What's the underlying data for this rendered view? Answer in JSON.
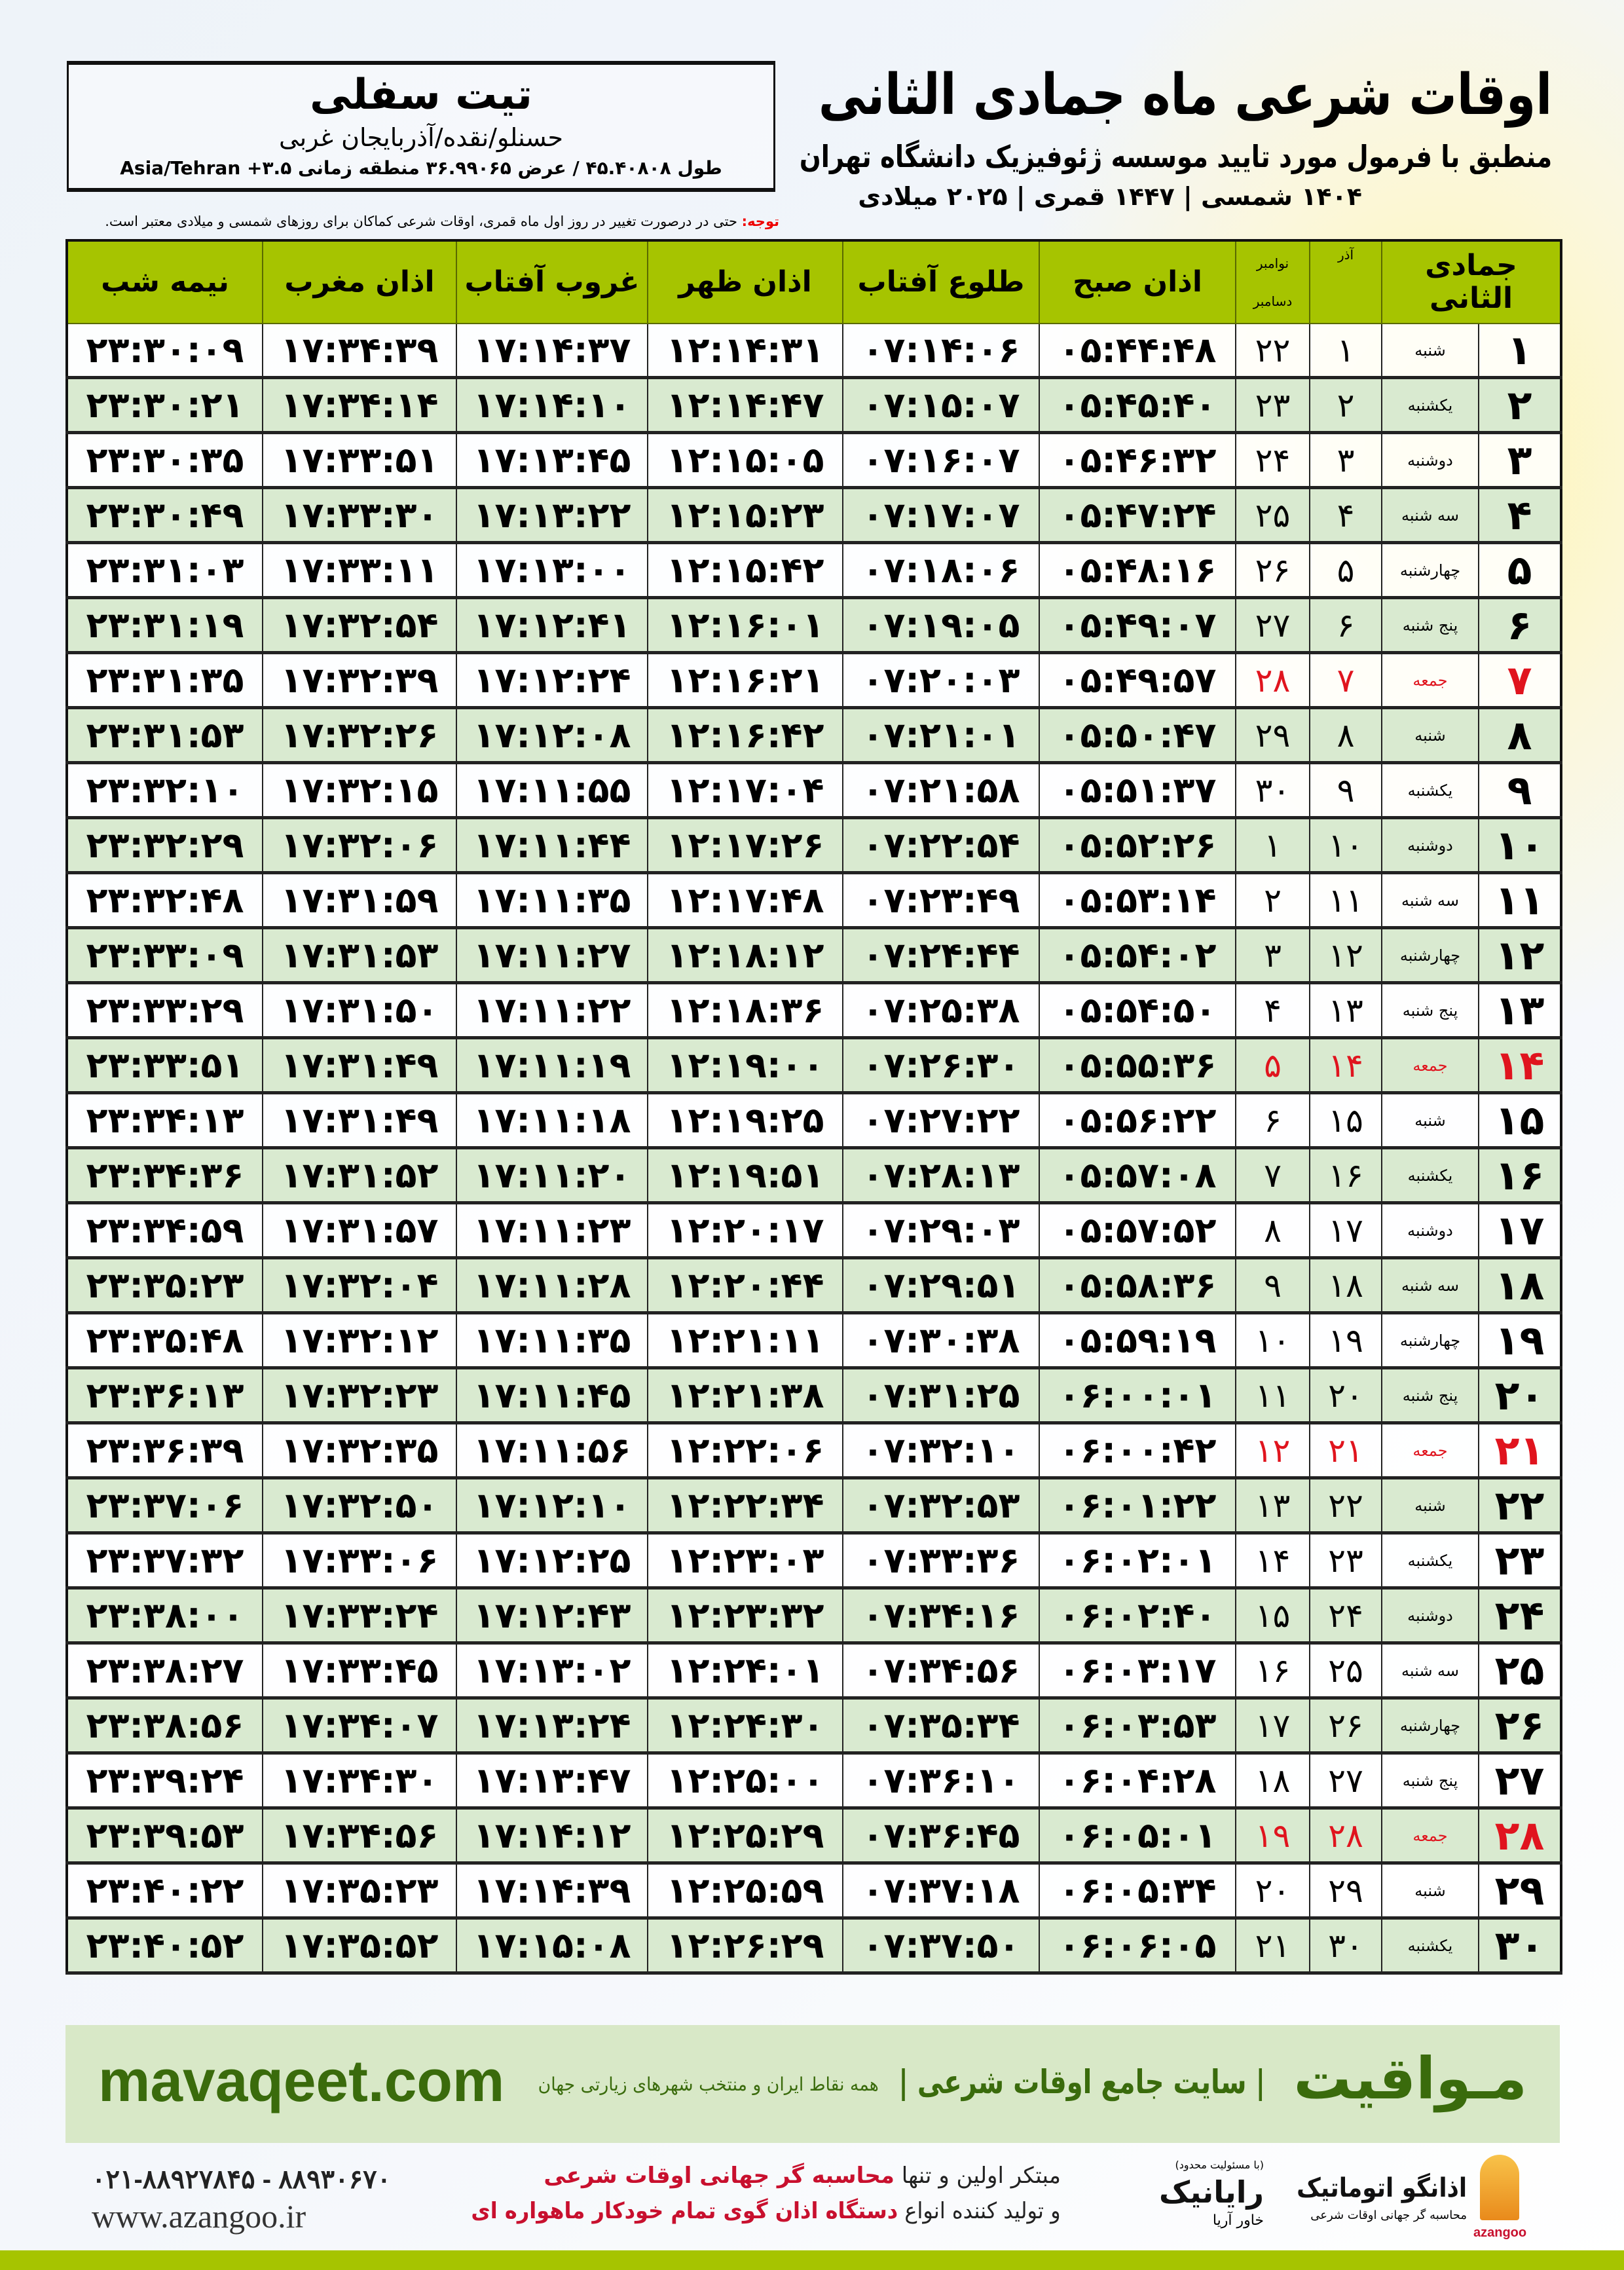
{
  "header": {
    "title": "اوقات شرعی ماه جمادی الثانی",
    "subtitle": "منطبق با فرمول مورد تایید موسسه ژئوفیزیک دانشگاه تهران",
    "years": "۱۴۰۴ شمسی | ۱۴۴۷ قمری | ۲۰۲۵ میلادی"
  },
  "location": {
    "city": "تیت سفلی",
    "region": "حسنلو/نقده/آذربایجان غربی",
    "coords": "طول ۴۵.۴۰۸۰۸ / عرض ۳۶.۹۹۰۶۵ منطقه زمانی ۳.۵+ Asia/Tehran"
  },
  "note": {
    "label": "توجه:",
    "text": " حتی در درصورت تغییر در روز اول ماه قمری، اوقات شرعی کماکان برای روزهای شمسی و میلادی معتبر است."
  },
  "table": {
    "columns": {
      "hijri": "جمادی الثانی",
      "azar": "آذر",
      "november": "نوامبر",
      "december": "دسامبر",
      "fajr": "اذان صبح",
      "sunrise": "طلوع آفتاب",
      "dhuhr": "اذان ظهر",
      "sunset": "غروب آفتاب",
      "maghrib": "اذان مغرب",
      "midnight": "نیمه شب"
    },
    "holiday_color": "#e0141e",
    "header_color": "#a6c400",
    "rows": [
      {
        "day": "۱",
        "weekday": "شنبه",
        "azar": "۱",
        "greg": "۲۲",
        "fajr": "۰۵:۴۴:۴۸",
        "sunrise": "۰۷:۱۴:۰۶",
        "dhuhr": "۱۲:۱۴:۳۱",
        "sunset": "۱۷:۱۴:۳۷",
        "maghrib": "۱۷:۳۴:۳۹",
        "midnight": "۲۳:۳۰:۰۹",
        "holiday": false
      },
      {
        "day": "۲",
        "weekday": "یکشنبه",
        "azar": "۲",
        "greg": "۲۳",
        "fajr": "۰۵:۴۵:۴۰",
        "sunrise": "۰۷:۱۵:۰۷",
        "dhuhr": "۱۲:۱۴:۴۷",
        "sunset": "۱۷:۱۴:۱۰",
        "maghrib": "۱۷:۳۴:۱۴",
        "midnight": "۲۳:۳۰:۲۱",
        "holiday": false
      },
      {
        "day": "۳",
        "weekday": "دوشنبه",
        "azar": "۳",
        "greg": "۲۴",
        "fajr": "۰۵:۴۶:۳۲",
        "sunrise": "۰۷:۱۶:۰۷",
        "dhuhr": "۱۲:۱۵:۰۵",
        "sunset": "۱۷:۱۳:۴۵",
        "maghrib": "۱۷:۳۳:۵۱",
        "midnight": "۲۳:۳۰:۳۵",
        "holiday": false
      },
      {
        "day": "۴",
        "weekday": "سه شنبه",
        "azar": "۴",
        "greg": "۲۵",
        "fajr": "۰۵:۴۷:۲۴",
        "sunrise": "۰۷:۱۷:۰۷",
        "dhuhr": "۱۲:۱۵:۲۳",
        "sunset": "۱۷:۱۳:۲۲",
        "maghrib": "۱۷:۳۳:۳۰",
        "midnight": "۲۳:۳۰:۴۹",
        "holiday": false
      },
      {
        "day": "۵",
        "weekday": "چهارشنبه",
        "azar": "۵",
        "greg": "۲۶",
        "fajr": "۰۵:۴۸:۱۶",
        "sunrise": "۰۷:۱۸:۰۶",
        "dhuhr": "۱۲:۱۵:۴۲",
        "sunset": "۱۷:۱۳:۰۰",
        "maghrib": "۱۷:۳۳:۱۱",
        "midnight": "۲۳:۳۱:۰۳",
        "holiday": false
      },
      {
        "day": "۶",
        "weekday": "پنج شنبه",
        "azar": "۶",
        "greg": "۲۷",
        "fajr": "۰۵:۴۹:۰۷",
        "sunrise": "۰۷:۱۹:۰۵",
        "dhuhr": "۱۲:۱۶:۰۱",
        "sunset": "۱۷:۱۲:۴۱",
        "maghrib": "۱۷:۳۲:۵۴",
        "midnight": "۲۳:۳۱:۱۹",
        "holiday": false
      },
      {
        "day": "۷",
        "weekday": "جمعه",
        "azar": "۷",
        "greg": "۲۸",
        "fajr": "۰۵:۴۹:۵۷",
        "sunrise": "۰۷:۲۰:۰۳",
        "dhuhr": "۱۲:۱۶:۲۱",
        "sunset": "۱۷:۱۲:۲۴",
        "maghrib": "۱۷:۳۲:۳۹",
        "midnight": "۲۳:۳۱:۳۵",
        "holiday": true
      },
      {
        "day": "۸",
        "weekday": "شنبه",
        "azar": "۸",
        "greg": "۲۹",
        "fajr": "۰۵:۵۰:۴۷",
        "sunrise": "۰۷:۲۱:۰۱",
        "dhuhr": "۱۲:۱۶:۴۲",
        "sunset": "۱۷:۱۲:۰۸",
        "maghrib": "۱۷:۳۲:۲۶",
        "midnight": "۲۳:۳۱:۵۳",
        "holiday": false
      },
      {
        "day": "۹",
        "weekday": "یکشنبه",
        "azar": "۹",
        "greg": "۳۰",
        "fajr": "۰۵:۵۱:۳۷",
        "sunrise": "۰۷:۲۱:۵۸",
        "dhuhr": "۱۲:۱۷:۰۴",
        "sunset": "۱۷:۱۱:۵۵",
        "maghrib": "۱۷:۳۲:۱۵",
        "midnight": "۲۳:۳۲:۱۰",
        "holiday": false
      },
      {
        "day": "۱۰",
        "weekday": "دوشنبه",
        "azar": "۱۰",
        "greg": "۱",
        "fajr": "۰۵:۵۲:۲۶",
        "sunrise": "۰۷:۲۲:۵۴",
        "dhuhr": "۱۲:۱۷:۲۶",
        "sunset": "۱۷:۱۱:۴۴",
        "maghrib": "۱۷:۳۲:۰۶",
        "midnight": "۲۳:۳۲:۲۹",
        "holiday": false
      },
      {
        "day": "۱۱",
        "weekday": "سه شنبه",
        "azar": "۱۱",
        "greg": "۲",
        "fajr": "۰۵:۵۳:۱۴",
        "sunrise": "۰۷:۲۳:۴۹",
        "dhuhr": "۱۲:۱۷:۴۸",
        "sunset": "۱۷:۱۱:۳۵",
        "maghrib": "۱۷:۳۱:۵۹",
        "midnight": "۲۳:۳۲:۴۸",
        "holiday": false
      },
      {
        "day": "۱۲",
        "weekday": "چهارشنبه",
        "azar": "۱۲",
        "greg": "۳",
        "fajr": "۰۵:۵۴:۰۲",
        "sunrise": "۰۷:۲۴:۴۴",
        "dhuhr": "۱۲:۱۸:۱۲",
        "sunset": "۱۷:۱۱:۲۷",
        "maghrib": "۱۷:۳۱:۵۳",
        "midnight": "۲۳:۳۳:۰۹",
        "holiday": false
      },
      {
        "day": "۱۳",
        "weekday": "پنج شنبه",
        "azar": "۱۳",
        "greg": "۴",
        "fajr": "۰۵:۵۴:۵۰",
        "sunrise": "۰۷:۲۵:۳۸",
        "dhuhr": "۱۲:۱۸:۳۶",
        "sunset": "۱۷:۱۱:۲۲",
        "maghrib": "۱۷:۳۱:۵۰",
        "midnight": "۲۳:۳۳:۲۹",
        "holiday": false
      },
      {
        "day": "۱۴",
        "weekday": "جمعه",
        "azar": "۱۴",
        "greg": "۵",
        "fajr": "۰۵:۵۵:۳۶",
        "sunrise": "۰۷:۲۶:۳۰",
        "dhuhr": "۱۲:۱۹:۰۰",
        "sunset": "۱۷:۱۱:۱۹",
        "maghrib": "۱۷:۳۱:۴۹",
        "midnight": "۲۳:۳۳:۵۱",
        "holiday": true
      },
      {
        "day": "۱۵",
        "weekday": "شنبه",
        "azar": "۱۵",
        "greg": "۶",
        "fajr": "۰۵:۵۶:۲۲",
        "sunrise": "۰۷:۲۷:۲۲",
        "dhuhr": "۱۲:۱۹:۲۵",
        "sunset": "۱۷:۱۱:۱۸",
        "maghrib": "۱۷:۳۱:۴۹",
        "midnight": "۲۳:۳۴:۱۳",
        "holiday": false
      },
      {
        "day": "۱۶",
        "weekday": "یکشنبه",
        "azar": "۱۶",
        "greg": "۷",
        "fajr": "۰۵:۵۷:۰۸",
        "sunrise": "۰۷:۲۸:۱۳",
        "dhuhr": "۱۲:۱۹:۵۱",
        "sunset": "۱۷:۱۱:۲۰",
        "maghrib": "۱۷:۳۱:۵۲",
        "midnight": "۲۳:۳۴:۳۶",
        "holiday": false
      },
      {
        "day": "۱۷",
        "weekday": "دوشنبه",
        "azar": "۱۷",
        "greg": "۸",
        "fajr": "۰۵:۵۷:۵۲",
        "sunrise": "۰۷:۲۹:۰۳",
        "dhuhr": "۱۲:۲۰:۱۷",
        "sunset": "۱۷:۱۱:۲۳",
        "maghrib": "۱۷:۳۱:۵۷",
        "midnight": "۲۳:۳۴:۵۹",
        "holiday": false
      },
      {
        "day": "۱۸",
        "weekday": "سه شنبه",
        "azar": "۱۸",
        "greg": "۹",
        "fajr": "۰۵:۵۸:۳۶",
        "sunrise": "۰۷:۲۹:۵۱",
        "dhuhr": "۱۲:۲۰:۴۴",
        "sunset": "۱۷:۱۱:۲۸",
        "maghrib": "۱۷:۳۲:۰۴",
        "midnight": "۲۳:۳۵:۲۳",
        "holiday": false
      },
      {
        "day": "۱۹",
        "weekday": "چهارشنبه",
        "azar": "۱۹",
        "greg": "۱۰",
        "fajr": "۰۵:۵۹:۱۹",
        "sunrise": "۰۷:۳۰:۳۸",
        "dhuhr": "۱۲:۲۱:۱۱",
        "sunset": "۱۷:۱۱:۳۵",
        "maghrib": "۱۷:۳۲:۱۲",
        "midnight": "۲۳:۳۵:۴۸",
        "holiday": false
      },
      {
        "day": "۲۰",
        "weekday": "پنج شنبه",
        "azar": "۲۰",
        "greg": "۱۱",
        "fajr": "۰۶:۰۰:۰۱",
        "sunrise": "۰۷:۳۱:۲۵",
        "dhuhr": "۱۲:۲۱:۳۸",
        "sunset": "۱۷:۱۱:۴۵",
        "maghrib": "۱۷:۳۲:۲۳",
        "midnight": "۲۳:۳۶:۱۳",
        "holiday": false
      },
      {
        "day": "۲۱",
        "weekday": "جمعه",
        "azar": "۲۱",
        "greg": "۱۲",
        "fajr": "۰۶:۰۰:۴۲",
        "sunrise": "۰۷:۳۲:۱۰",
        "dhuhr": "۱۲:۲۲:۰۶",
        "sunset": "۱۷:۱۱:۵۶",
        "maghrib": "۱۷:۳۲:۳۵",
        "midnight": "۲۳:۳۶:۳۹",
        "holiday": true
      },
      {
        "day": "۲۲",
        "weekday": "شنبه",
        "azar": "۲۲",
        "greg": "۱۳",
        "fajr": "۰۶:۰۱:۲۲",
        "sunrise": "۰۷:۳۲:۵۳",
        "dhuhr": "۱۲:۲۲:۳۴",
        "sunset": "۱۷:۱۲:۱۰",
        "maghrib": "۱۷:۳۲:۵۰",
        "midnight": "۲۳:۳۷:۰۶",
        "holiday": false
      },
      {
        "day": "۲۳",
        "weekday": "یکشنبه",
        "azar": "۲۳",
        "greg": "۱۴",
        "fajr": "۰۶:۰۲:۰۱",
        "sunrise": "۰۷:۳۳:۳۶",
        "dhuhr": "۱۲:۲۳:۰۳",
        "sunset": "۱۷:۱۲:۲۵",
        "maghrib": "۱۷:۳۳:۰۶",
        "midnight": "۲۳:۳۷:۳۲",
        "holiday": false
      },
      {
        "day": "۲۴",
        "weekday": "دوشنبه",
        "azar": "۲۴",
        "greg": "۱۵",
        "fajr": "۰۶:۰۲:۴۰",
        "sunrise": "۰۷:۳۴:۱۶",
        "dhuhr": "۱۲:۲۳:۳۲",
        "sunset": "۱۷:۱۲:۴۳",
        "maghrib": "۱۷:۳۳:۲۴",
        "midnight": "۲۳:۳۸:۰۰",
        "holiday": false
      },
      {
        "day": "۲۵",
        "weekday": "سه شنبه",
        "azar": "۲۵",
        "greg": "۱۶",
        "fajr": "۰۶:۰۳:۱۷",
        "sunrise": "۰۷:۳۴:۵۶",
        "dhuhr": "۱۲:۲۴:۰۱",
        "sunset": "۱۷:۱۳:۰۲",
        "maghrib": "۱۷:۳۳:۴۵",
        "midnight": "۲۳:۳۸:۲۷",
        "holiday": false
      },
      {
        "day": "۲۶",
        "weekday": "چهارشنبه",
        "azar": "۲۶",
        "greg": "۱۷",
        "fajr": "۰۶:۰۳:۵۳",
        "sunrise": "۰۷:۳۵:۳۴",
        "dhuhr": "۱۲:۲۴:۳۰",
        "sunset": "۱۷:۱۳:۲۴",
        "maghrib": "۱۷:۳۴:۰۷",
        "midnight": "۲۳:۳۸:۵۶",
        "holiday": false
      },
      {
        "day": "۲۷",
        "weekday": "پنج شنبه",
        "azar": "۲۷",
        "greg": "۱۸",
        "fajr": "۰۶:۰۴:۲۸",
        "sunrise": "۰۷:۳۶:۱۰",
        "dhuhr": "۱۲:۲۵:۰۰",
        "sunset": "۱۷:۱۳:۴۷",
        "maghrib": "۱۷:۳۴:۳۰",
        "midnight": "۲۳:۳۹:۲۴",
        "holiday": false
      },
      {
        "day": "۲۸",
        "weekday": "جمعه",
        "azar": "۲۸",
        "greg": "۱۹",
        "fajr": "۰۶:۰۵:۰۱",
        "sunrise": "۰۷:۳۶:۴۵",
        "dhuhr": "۱۲:۲۵:۲۹",
        "sunset": "۱۷:۱۴:۱۲",
        "maghrib": "۱۷:۳۴:۵۶",
        "midnight": "۲۳:۳۹:۵۳",
        "holiday": true
      },
      {
        "day": "۲۹",
        "weekday": "شنبه",
        "azar": "۲۹",
        "greg": "۲۰",
        "fajr": "۰۶:۰۵:۳۴",
        "sunrise": "۰۷:۳۷:۱۸",
        "dhuhr": "۱۲:۲۵:۵۹",
        "sunset": "۱۷:۱۴:۳۹",
        "maghrib": "۱۷:۳۵:۲۳",
        "midnight": "۲۳:۴۰:۲۲",
        "holiday": false
      },
      {
        "day": "۳۰",
        "weekday": "یکشنبه",
        "azar": "۳۰",
        "greg": "۲۱",
        "fajr": "۰۶:۰۶:۰۵",
        "sunrise": "۰۷:۳۷:۵۰",
        "dhuhr": "۱۲:۲۶:۲۹",
        "sunset": "۱۷:۱۵:۰۸",
        "maghrib": "۱۷:۳۵:۵۲",
        "midnight": "۲۳:۴۰:۵۲",
        "holiday": false
      }
    ]
  },
  "ad": {
    "brand": "مـواقیت",
    "slogan": "| سایت جامع اوقات شرعی |",
    "sub": "همه نقاط ایران و منتخب شهرهای زیارتی جهان",
    "site": "mavaqeet.com"
  },
  "footer": {
    "phone": "۰۲۱-۸۸۹۲۷۸۴۵ - ۸۸۹۳۰۶۷۰",
    "web": "www.azangoo.ir",
    "promo1a": "مبتکر اولین و تنها ",
    "promo1b": "محاسبه گر جهانی اوقات شرعی",
    "promo2a": "و تولید کننده انواع ",
    "promo2b": "دستگاه اذان گوی تمام خودکار ماهواره ای",
    "logo1_small": "(با مسئولیت محدود)",
    "logo1": "رایانیک",
    "logo1_side": "خاور آریا",
    "logo2": "اذانگو اتوماتیک",
    "logo2_small": "محاسبه گر جهانی اوقات شرعی",
    "logo2_en": "azangoo"
  }
}
